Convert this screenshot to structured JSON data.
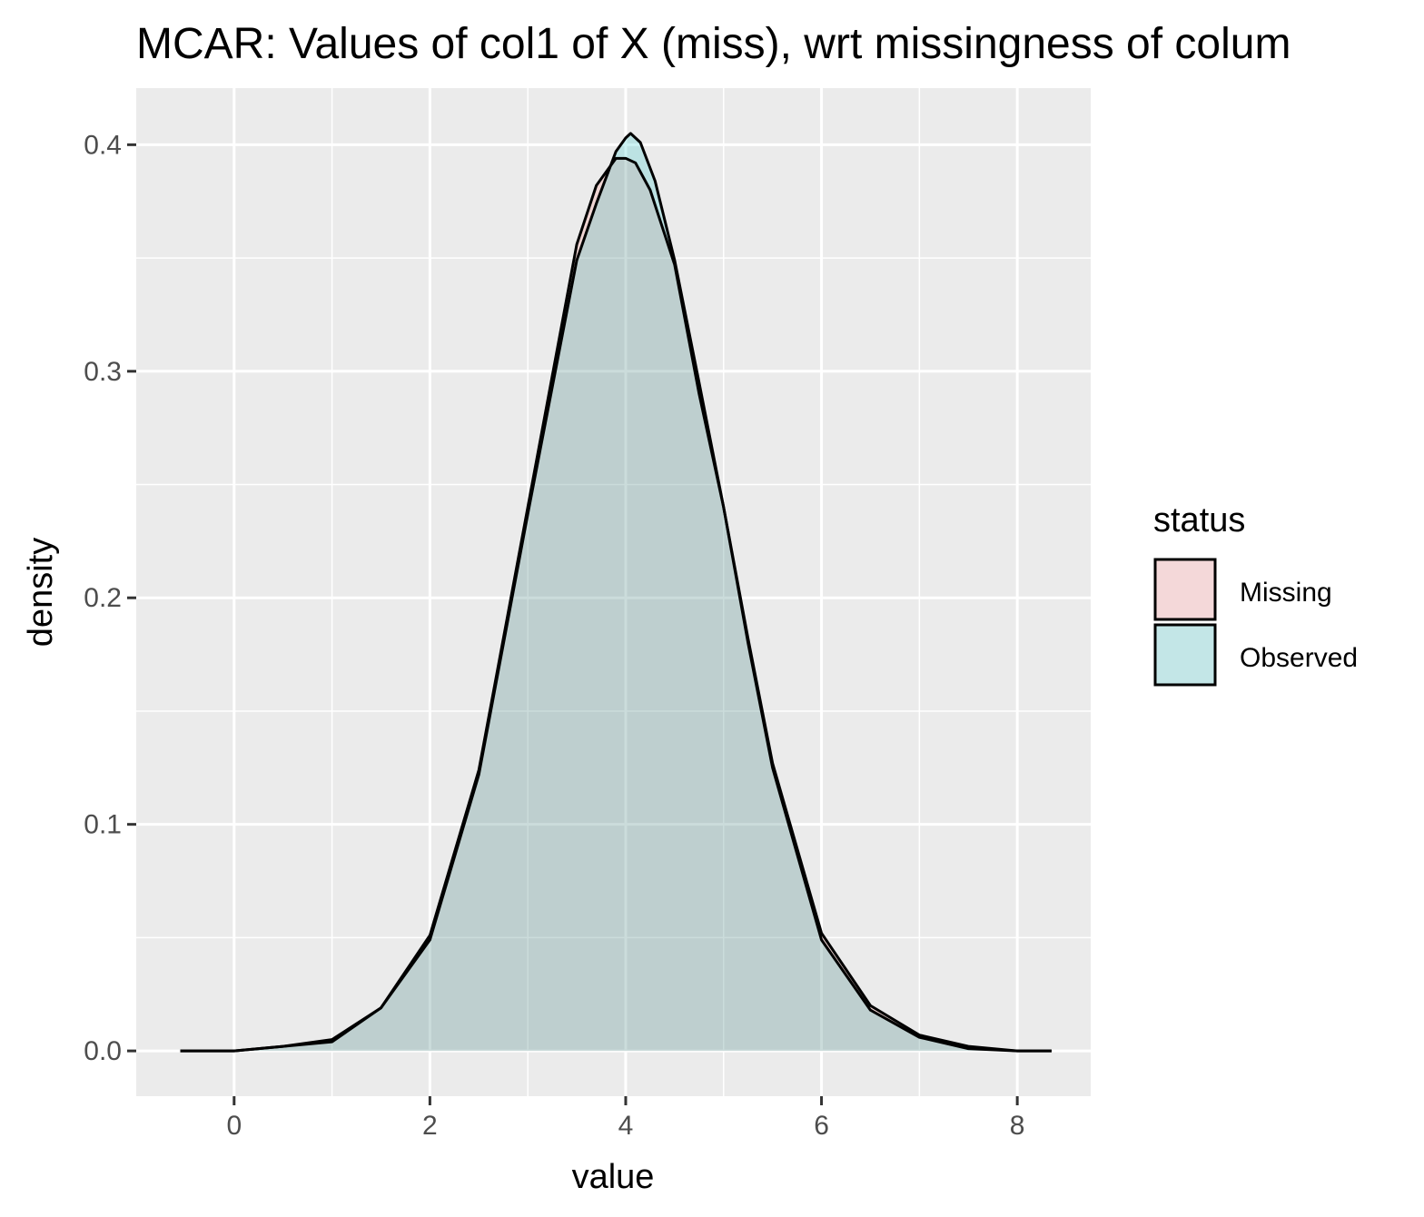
{
  "chart_data": {
    "type": "area",
    "title": "MCAR: Values of col1 of X (miss), wrt missingness of colum",
    "xlabel": "value",
    "ylabel": "density",
    "xlim": [
      -1,
      8.75
    ],
    "ylim": [
      -0.02,
      0.425
    ],
    "x_ticks": [
      0,
      2,
      4,
      6,
      8
    ],
    "y_ticks": [
      0.0,
      0.1,
      0.2,
      0.3,
      0.4
    ],
    "x_tick_labels": [
      "0",
      "2",
      "4",
      "6",
      "8"
    ],
    "y_tick_labels": [
      "0.0",
      "0.1",
      "0.2",
      "0.3",
      "0.4"
    ],
    "grid": true,
    "legend": {
      "title": "status",
      "placement": "right",
      "entries": [
        {
          "label": "Missing",
          "color": "#f4d8d9"
        },
        {
          "label": "Observed",
          "color": "#c3e6e7"
        }
      ]
    },
    "series": [
      {
        "name": "Missing",
        "fill": "#f8766d",
        "points": [
          [
            -0.55,
            0.0
          ],
          [
            0.0,
            0.0
          ],
          [
            0.5,
            0.002
          ],
          [
            1.0,
            0.004
          ],
          [
            1.5,
            0.019
          ],
          [
            2.0,
            0.051
          ],
          [
            2.5,
            0.124
          ],
          [
            3.0,
            0.24
          ],
          [
            3.25,
            0.298
          ],
          [
            3.5,
            0.356
          ],
          [
            3.7,
            0.382
          ],
          [
            3.9,
            0.394
          ],
          [
            4.0,
            0.394
          ],
          [
            4.1,
            0.392
          ],
          [
            4.25,
            0.38
          ],
          [
            4.5,
            0.347
          ],
          [
            4.75,
            0.29
          ],
          [
            5.0,
            0.24
          ],
          [
            5.25,
            0.182
          ],
          [
            5.5,
            0.127
          ],
          [
            6.0,
            0.052
          ],
          [
            6.5,
            0.02
          ],
          [
            7.0,
            0.007
          ],
          [
            7.5,
            0.002
          ],
          [
            8.0,
            0.0
          ],
          [
            8.35,
            0.0
          ]
        ]
      },
      {
        "name": "Observed",
        "fill": "#00bfc4",
        "points": [
          [
            -0.55,
            0.0
          ],
          [
            0.0,
            0.0
          ],
          [
            0.5,
            0.002
          ],
          [
            1.0,
            0.005
          ],
          [
            1.5,
            0.019
          ],
          [
            2.0,
            0.049
          ],
          [
            2.5,
            0.122
          ],
          [
            3.0,
            0.237
          ],
          [
            3.25,
            0.293
          ],
          [
            3.5,
            0.349
          ],
          [
            3.7,
            0.374
          ],
          [
            3.9,
            0.397
          ],
          [
            4.0,
            0.403
          ],
          [
            4.05,
            0.405
          ],
          [
            4.15,
            0.401
          ],
          [
            4.3,
            0.384
          ],
          [
            4.5,
            0.349
          ],
          [
            4.75,
            0.295
          ],
          [
            5.0,
            0.24
          ],
          [
            5.25,
            0.18
          ],
          [
            5.5,
            0.125
          ],
          [
            6.0,
            0.049
          ],
          [
            6.5,
            0.018
          ],
          [
            7.0,
            0.006
          ],
          [
            7.5,
            0.001
          ],
          [
            8.0,
            0.0
          ],
          [
            8.35,
            0.0
          ]
        ]
      }
    ]
  }
}
